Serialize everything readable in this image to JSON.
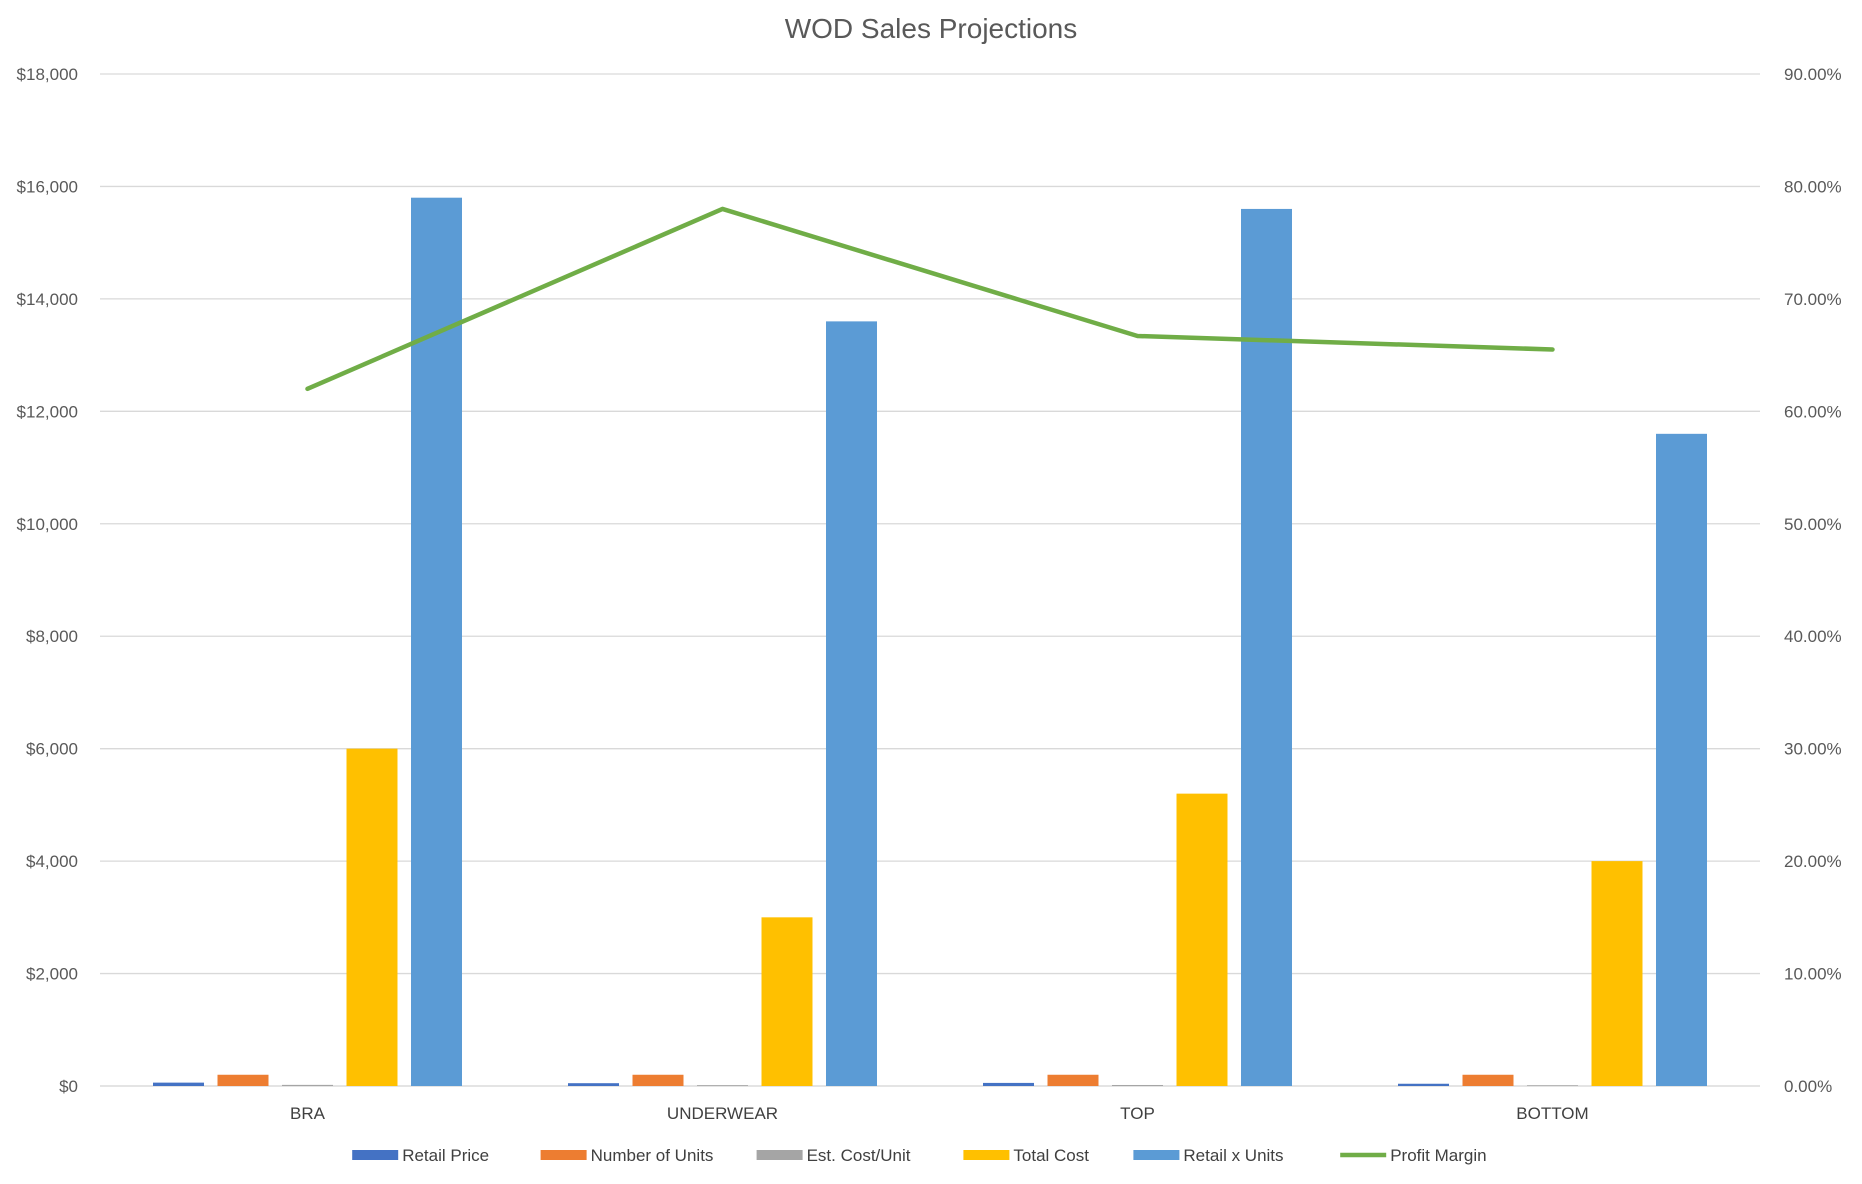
{
  "chart_data": {
    "type": "bar",
    "title": "WOD Sales Projections",
    "categories": [
      "BRA",
      "UNDERWEAR",
      "TOP",
      "BOTTOM"
    ],
    "y_left": {
      "range": [
        0,
        18000
      ],
      "tick_values": [
        0,
        2000,
        4000,
        6000,
        8000,
        10000,
        12000,
        14000,
        16000,
        18000
      ],
      "tick_labels": [
        "$0",
        "$2,000",
        "$4,000",
        "$6,000",
        "$8,000",
        "$10,000",
        "$12,000",
        "$14,000",
        "$16,000",
        "$18,000"
      ]
    },
    "y_right": {
      "range": [
        0,
        90
      ],
      "tick_values": [
        0,
        10,
        20,
        30,
        40,
        50,
        60,
        70,
        80,
        90
      ],
      "tick_labels": [
        "0.00%",
        "10.00%",
        "20.00%",
        "30.00%",
        "40.00%",
        "50.00%",
        "60.00%",
        "70.00%",
        "80.00%",
        "90.00%"
      ]
    },
    "grid": true,
    "legend_position": "bottom",
    "series": [
      {
        "name": "Retail Price",
        "type": "bar",
        "axis": "left",
        "color": "#4472C4",
        "values": [
          60,
          50,
          55,
          40
        ]
      },
      {
        "name": "Number of Units",
        "type": "bar",
        "axis": "left",
        "color": "#ED7D31",
        "values": [
          200,
          200,
          200,
          200
        ]
      },
      {
        "name": "Est. Cost/Unit",
        "type": "bar",
        "axis": "left",
        "color": "#A5A5A5",
        "values": [
          20,
          15,
          18,
          13
        ]
      },
      {
        "name": "Total Cost",
        "type": "bar",
        "axis": "left",
        "color": "#FFC000",
        "values": [
          6000,
          3000,
          5200,
          4000
        ]
      },
      {
        "name": "Retail x Units",
        "type": "bar",
        "axis": "left",
        "color": "#5B9BD5",
        "values": [
          15800,
          13600,
          15600,
          11600
        ]
      },
      {
        "name": "Profit Margin",
        "type": "line",
        "axis": "right",
        "color": "#70AD47",
        "values": [
          62,
          78,
          66.7,
          65.5
        ]
      }
    ]
  }
}
